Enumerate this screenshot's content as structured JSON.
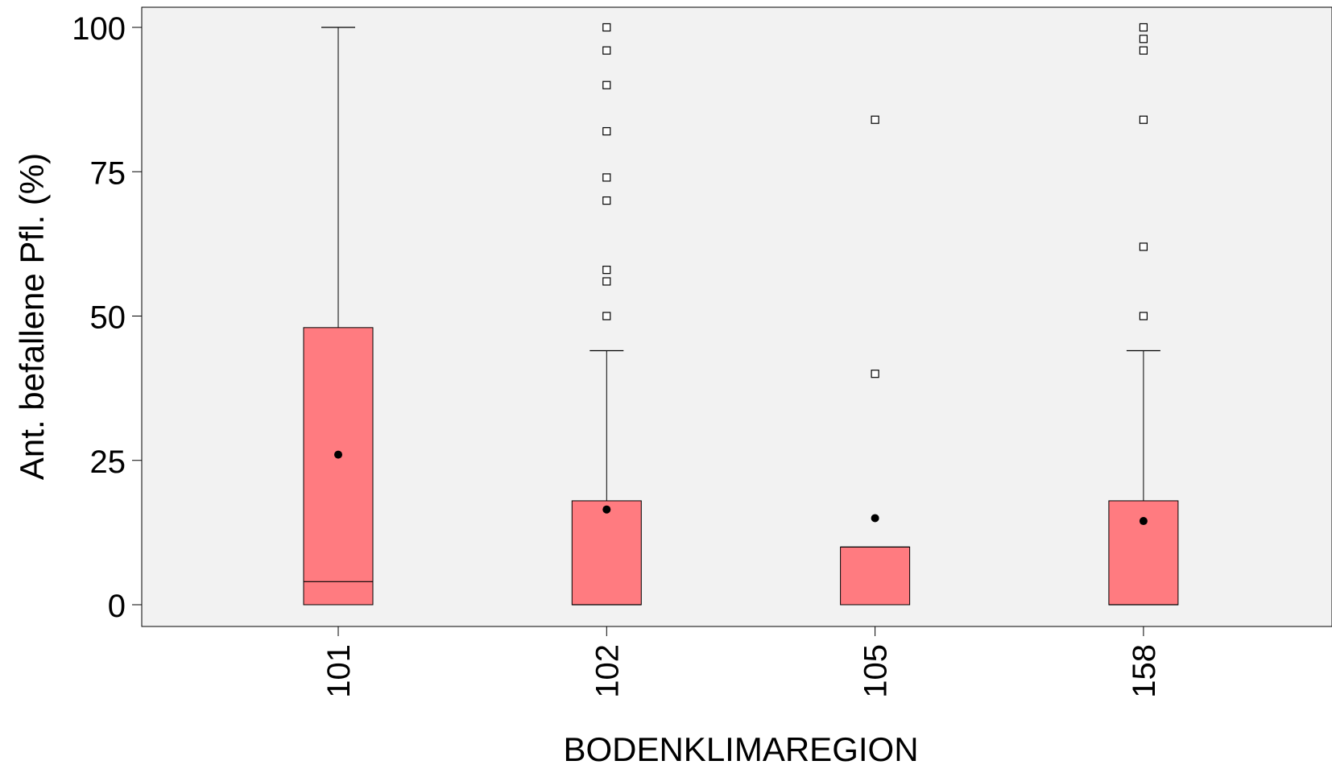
{
  "chart_data": {
    "type": "box",
    "xlabel": "BODENKLIMAREGION",
    "ylabel": "Ant. befallene Pfl.  (%)",
    "ylim": [
      0,
      100
    ],
    "yticks": [
      0,
      25,
      50,
      75,
      100
    ],
    "grid": false,
    "legend": "none",
    "box_color": "#FF7B80",
    "plot_background": "#F2F2F2",
    "categories": [
      "101",
      "102",
      "105",
      "158"
    ],
    "boxes": [
      {
        "category": "101",
        "min": 0,
        "q1": 0,
        "median": 4,
        "q3": 48,
        "whisker_high": 100,
        "mean": 26,
        "outliers": []
      },
      {
        "category": "102",
        "min": 0,
        "q1": 0,
        "median": 0,
        "q3": 18,
        "whisker_high": 44,
        "mean": 16.5,
        "outliers": [
          50,
          56,
          58,
          70,
          74,
          82,
          90,
          96,
          100
        ]
      },
      {
        "category": "105",
        "min": 0,
        "q1": 0,
        "median": 10,
        "q3": 10,
        "whisker_high": 10,
        "mean": 15,
        "outliers": [
          40,
          84
        ]
      },
      {
        "category": "158",
        "min": 0,
        "q1": 0,
        "median": 0,
        "q3": 18,
        "whisker_high": 44,
        "mean": 14.5,
        "outliers": [
          50,
          62,
          84,
          96,
          98,
          100
        ]
      }
    ]
  }
}
